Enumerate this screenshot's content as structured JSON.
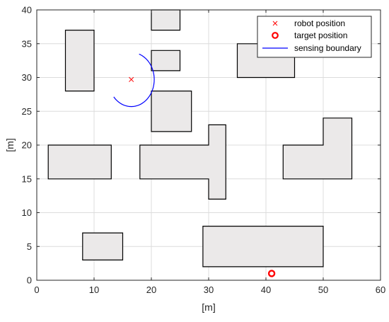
{
  "chart_data": {
    "type": "scatter",
    "title": "",
    "xlabel": "[m]",
    "ylabel": "[m]",
    "xlim": [
      0,
      60
    ],
    "ylim": [
      0,
      40
    ],
    "xticks": [
      0,
      10,
      20,
      30,
      40,
      50,
      60
    ],
    "yticks": [
      0,
      5,
      10,
      15,
      20,
      25,
      30,
      35,
      40
    ],
    "grid": true,
    "legend_placement": "top-right",
    "obstacles": [
      {
        "vertices": [
          [
            5,
            28
          ],
          [
            10,
            28
          ],
          [
            10,
            37
          ],
          [
            5,
            37
          ]
        ]
      },
      {
        "vertices": [
          [
            20,
            37
          ],
          [
            25,
            37
          ],
          [
            25,
            40
          ],
          [
            20,
            40
          ]
        ]
      },
      {
        "vertices": [
          [
            20,
            31
          ],
          [
            25,
            31
          ],
          [
            25,
            34
          ],
          [
            20,
            34
          ]
        ]
      },
      {
        "vertices": [
          [
            20,
            22
          ],
          [
            27,
            22
          ],
          [
            27,
            28
          ],
          [
            20,
            28
          ]
        ]
      },
      {
        "vertices": [
          [
            35,
            30
          ],
          [
            45,
            30
          ],
          [
            45,
            35
          ],
          [
            35,
            35
          ]
        ]
      },
      {
        "vertices": [
          [
            2,
            15
          ],
          [
            13,
            15
          ],
          [
            13,
            20
          ],
          [
            2,
            20
          ]
        ]
      },
      {
        "vertices": [
          [
            18,
            15
          ],
          [
            30,
            15
          ],
          [
            30,
            12
          ],
          [
            33,
            12
          ],
          [
            33,
            23
          ],
          [
            30,
            23
          ],
          [
            30,
            20
          ],
          [
            18,
            20
          ]
        ]
      },
      {
        "vertices": [
          [
            43,
            15
          ],
          [
            55,
            15
          ],
          [
            55,
            24
          ],
          [
            50,
            24
          ],
          [
            50,
            20
          ],
          [
            43,
            20
          ]
        ]
      },
      {
        "vertices": [
          [
            8,
            3
          ],
          [
            15,
            3
          ],
          [
            15,
            7
          ],
          [
            8,
            7
          ]
        ]
      },
      {
        "vertices": [
          [
            29,
            2
          ],
          [
            50,
            2
          ],
          [
            50,
            8
          ],
          [
            29,
            8
          ]
        ]
      }
    ],
    "robot_position": {
      "x": 16.5,
      "y": 29.7
    },
    "target_position": {
      "x": 41,
      "y": 1
    },
    "sensing_boundary": {
      "center": {
        "x": 16.5,
        "y": 29.7
      },
      "radius": 4,
      "start_angle_deg": -140,
      "end_angle_deg": 70
    },
    "series": [
      {
        "name": "robot position",
        "marker": "x",
        "color": "#ff0000"
      },
      {
        "name": "target position",
        "marker": "o",
        "color": "#ff0000"
      },
      {
        "name": "sensing boundary",
        "line": "solid",
        "color": "#0000ff"
      }
    ]
  },
  "colors": {
    "obstacle_fill": "#ebe9e9",
    "obstacle_edge": "#000000",
    "grid": "#dcdcdc",
    "axis": "#262626",
    "robot": "#ff0000",
    "target": "#ff0000",
    "boundary": "#0000ff"
  }
}
